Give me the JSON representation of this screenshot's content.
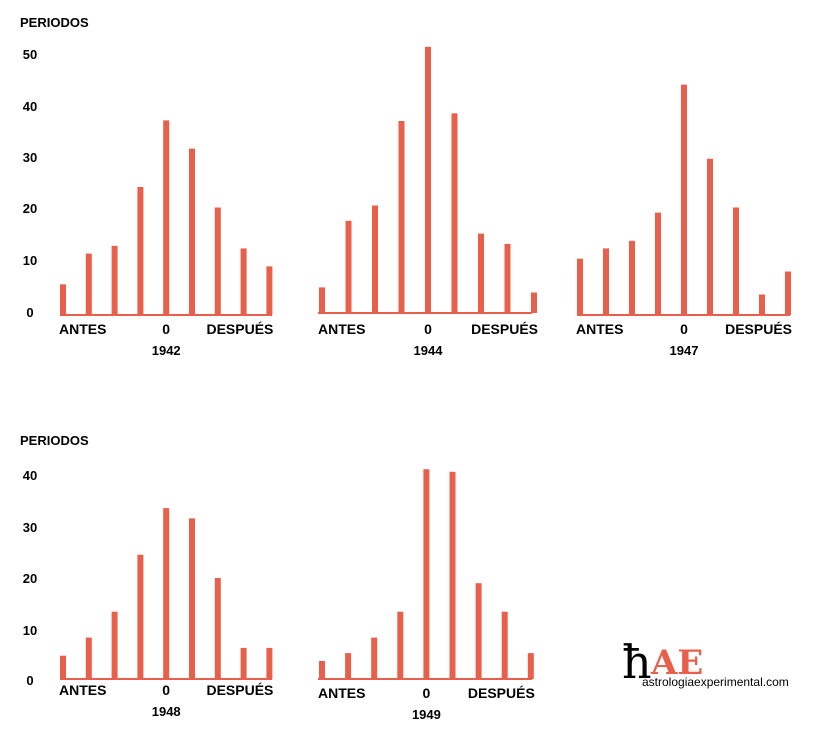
{
  "y_axis_title": "PERIODOS",
  "x_label_left": "ANTES",
  "x_label_center": "0",
  "x_label_right": "DESPUÉS",
  "colors": {
    "bar": "#e8604c",
    "text": "#000000"
  },
  "logo": {
    "glyph": "ħ",
    "letters": "AE",
    "url_text": "astrologiaexperimental.com"
  },
  "chart_data": [
    {
      "type": "bar",
      "title": "1942",
      "ylabel": "PERIODOS",
      "yticks": [
        0,
        10,
        20,
        30,
        40,
        50
      ],
      "ylim": [
        0,
        52
      ],
      "categories": [
        "-4",
        "-3",
        "-2",
        "-1",
        "0",
        "1",
        "2",
        "3",
        "4"
      ],
      "values": [
        6,
        12,
        13.5,
        25,
        38,
        32.5,
        21,
        13,
        9.5
      ]
    },
    {
      "type": "bar",
      "title": "1944",
      "ylim": [
        0,
        52
      ],
      "categories": [
        "-4",
        "-3",
        "-2",
        "-1",
        "0",
        "1",
        "2",
        "3",
        "4"
      ],
      "values": [
        5,
        18,
        21,
        37.5,
        52,
        39,
        15.5,
        13.5,
        4
      ]
    },
    {
      "type": "bar",
      "title": "1947",
      "ylim": [
        0,
        52
      ],
      "categories": [
        "-4",
        "-3",
        "-2",
        "-1",
        "0",
        "1",
        "2",
        "3",
        "4"
      ],
      "values": [
        11,
        13,
        14.5,
        20,
        45,
        30.5,
        21,
        4,
        8.5
      ]
    },
    {
      "type": "bar",
      "title": "1948",
      "ylabel": "PERIODOS",
      "yticks": [
        0,
        10,
        20,
        30,
        40
      ],
      "ylim": [
        0,
        40
      ],
      "categories": [
        "-4",
        "-3",
        "-2",
        "-1",
        "0",
        "1",
        "2",
        "3",
        "4"
      ],
      "values": [
        4.5,
        8,
        13,
        24,
        33,
        31,
        19.5,
        6,
        6
      ]
    },
    {
      "type": "bar",
      "title": "1949",
      "ylim": [
        0,
        40
      ],
      "categories": [
        "-4",
        "-3",
        "-2",
        "-1",
        "0",
        "1",
        "2",
        "3",
        "4"
      ],
      "values": [
        3.5,
        5,
        8,
        13,
        40.5,
        40,
        18.5,
        13,
        5
      ]
    }
  ]
}
